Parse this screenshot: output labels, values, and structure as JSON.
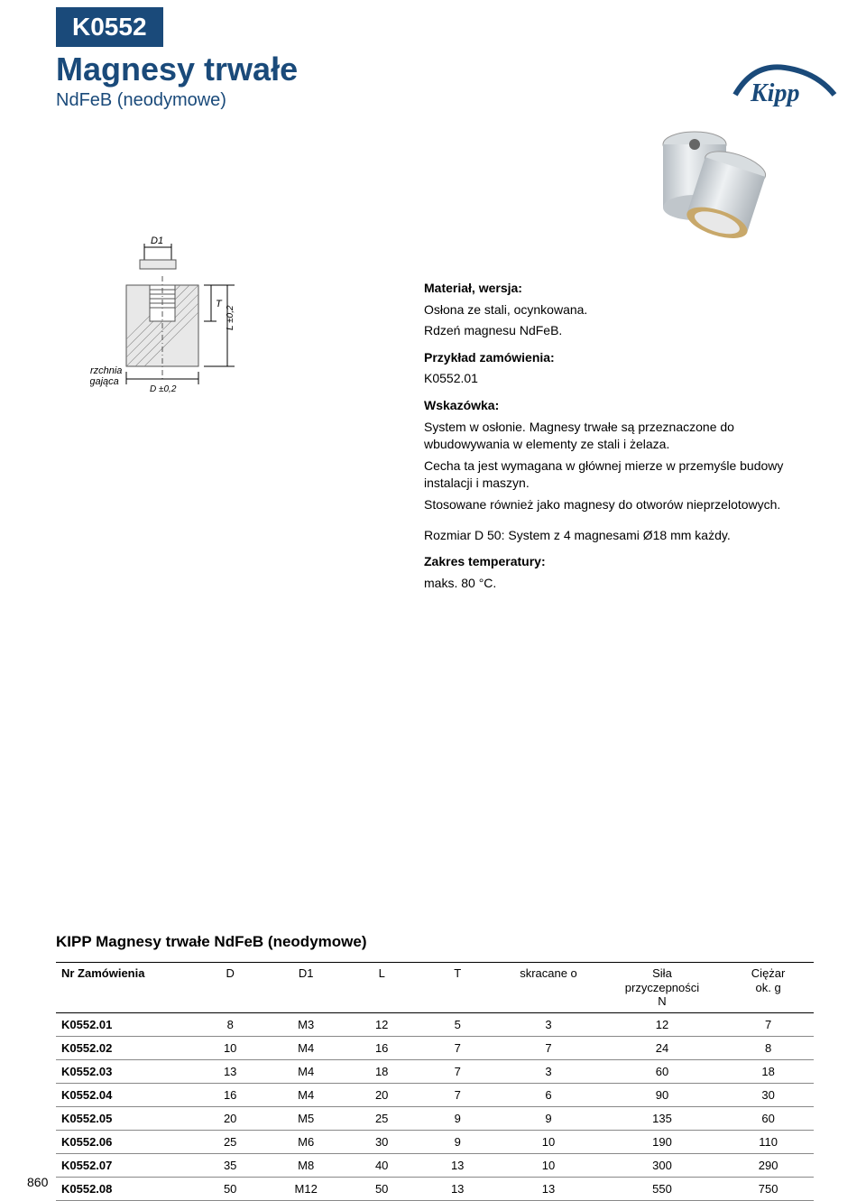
{
  "badge": "K0552",
  "title": "Magnesy trwałe",
  "subtitle": "NdFeB (neodymowe)",
  "logo_text": "Kipp",
  "diagram": {
    "label_D1": "D1",
    "label_T": "T",
    "label_L": "L ±0,2",
    "label_D": "D ±0,2",
    "label_surface_1": "Powierzchnia",
    "label_surface_2": "przylegająca"
  },
  "desc": {
    "material_h": "Materiał, wersja:",
    "material_1": "Osłona ze stali, ocynkowana.",
    "material_2": "Rdzeń magnesu NdFeB.",
    "order_h": "Przykład zamówienia:",
    "order_1": "K0552.01",
    "hint_h": "Wskazówka:",
    "hint_1": "System w osłonie. Magnesy trwałe są przeznaczone do wbudowywania w elementy ze stali i żelaza.",
    "hint_2": "Cecha ta jest wymagana w głównej mierze w przemyśle budowy instalacji i maszyn.",
    "hint_3": "Stosowane również jako magnesy do otworów nieprzelotowych.",
    "size_note": "Rozmiar D 50: System z 4 magnesami Ø18 mm każdy.",
    "temp_h": "Zakres temperatury:",
    "temp_1": "maks. 80 °C."
  },
  "table": {
    "title": "KIPP Magnesy trwałe NdFeB (neodymowe)",
    "columns": [
      "Nr Zamówienia",
      "D",
      "D1",
      "L",
      "T",
      "skracane o",
      "Siła\nprzyczepności\nN",
      "Ciężar\nok. g"
    ],
    "rows": [
      [
        "K0552.01",
        "8",
        "M3",
        "12",
        "5",
        "3",
        "12",
        "7"
      ],
      [
        "K0552.02",
        "10",
        "M4",
        "16",
        "7",
        "7",
        "24",
        "8"
      ],
      [
        "K0552.03",
        "13",
        "M4",
        "18",
        "7",
        "3",
        "60",
        "18"
      ],
      [
        "K0552.04",
        "16",
        "M4",
        "20",
        "7",
        "6",
        "90",
        "30"
      ],
      [
        "K0552.05",
        "20",
        "M5",
        "25",
        "9",
        "9",
        "135",
        "60"
      ],
      [
        "K0552.06",
        "25",
        "M6",
        "30",
        "9",
        "10",
        "190",
        "110"
      ],
      [
        "K0552.07",
        "35",
        "M8",
        "40",
        "13",
        "10",
        "300",
        "290"
      ],
      [
        "K0552.08",
        "50",
        "M12",
        "50",
        "13",
        "13",
        "550",
        "750"
      ]
    ],
    "col_widths": [
      "18%",
      "10%",
      "10%",
      "10%",
      "10%",
      "14%",
      "16%",
      "12%"
    ]
  },
  "page_number": "860",
  "colors": {
    "brand_blue": "#1a4a7a",
    "cylinder_light": "#d8dde0",
    "cylinder_dark": "#b5bcc2",
    "magnet_ring": "#c8a86a",
    "magnet_face": "#e8e8e8"
  }
}
